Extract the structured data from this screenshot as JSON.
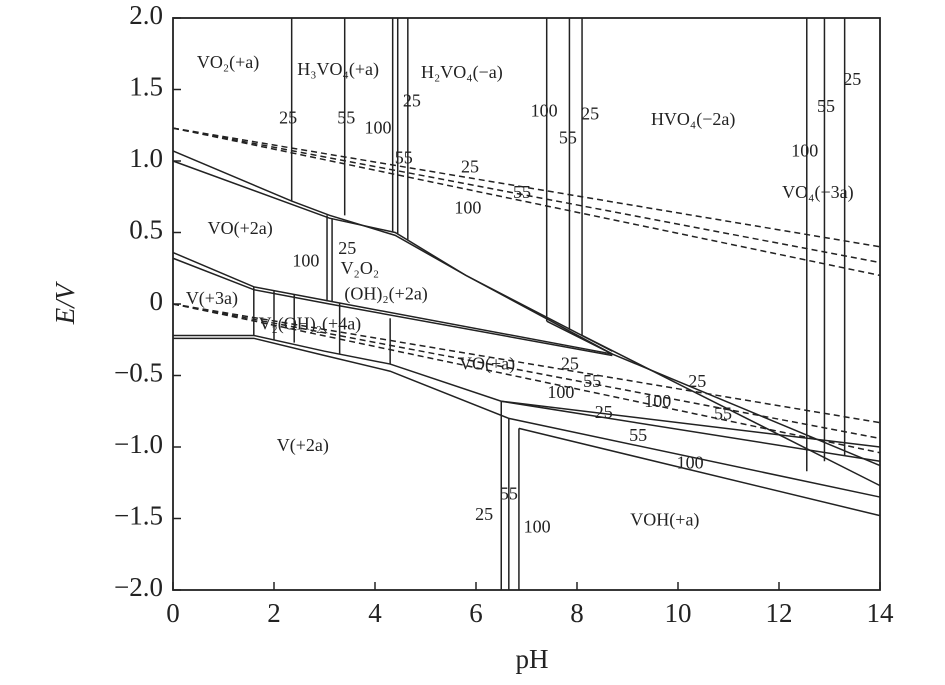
{
  "chart_data": {
    "type": "line",
    "xlabel": "pH",
    "ylabel": "E/V",
    "xlim": [
      0,
      14
    ],
    "ylim": [
      -2,
      2
    ],
    "xticks": [
      0,
      2,
      4,
      6,
      8,
      10,
      12,
      14
    ],
    "yticks": [
      {
        "value": 2,
        "label": "2.0"
      },
      {
        "value": 1.5,
        "label": "1.5"
      },
      {
        "value": 1,
        "label": "1.0"
      },
      {
        "value": 0.5,
        "label": "0.5"
      },
      0,
      {
        "value": -0.5,
        "label": "−0.5"
      },
      {
        "value": -1,
        "label": "−1.0"
      },
      {
        "value": -1.5,
        "label": "−1.5"
      },
      {
        "value": -2,
        "label": "−2.0"
      }
    ],
    "color": "#222222",
    "lines": [
      {
        "style": "dashed",
        "x": [
          0,
          14
        ],
        "y": [
          1.23,
          0.4
        ]
      },
      {
        "style": "dashed",
        "x": [
          0,
          14
        ],
        "y": [
          1.23,
          0.29
        ]
      },
      {
        "style": "dashed",
        "x": [
          0,
          14
        ],
        "y": [
          1.23,
          0.2
        ]
      },
      {
        "style": "dashed",
        "x": [
          0,
          14
        ],
        "y": [
          0,
          -0.83
        ]
      },
      {
        "style": "dashed",
        "x": [
          0,
          14
        ],
        "y": [
          0,
          -0.94
        ]
      },
      {
        "style": "dashed",
        "x": [
          0,
          14
        ],
        "y": [
          0,
          -1.04
        ]
      },
      {
        "style": "solid",
        "x": [
          0,
          2.35,
          3.1,
          4.4,
          5.8,
          8.7
        ],
        "y": [
          1.07,
          0.72,
          0.62,
          0.48,
          0.2,
          -0.35
        ]
      },
      {
        "style": "solid",
        "x": [
          0,
          3.1,
          4.4,
          5.8,
          8.7
        ],
        "y": [
          1.0,
          0.6,
          0.5,
          0.2,
          -0.33
        ]
      },
      {
        "style": "solid",
        "x": [
          0,
          1.6,
          3.1,
          8.7
        ],
        "y": [
          0.36,
          0.12,
          0.02,
          -0.35
        ]
      },
      {
        "style": "solid",
        "x": [
          0,
          1.6,
          3.1,
          8.7
        ],
        "y": [
          0.32,
          0.1,
          0.0,
          -0.36
        ]
      },
      {
        "style": "solid",
        "x": [
          0,
          1.6,
          3.0,
          4.3,
          6.5,
          14
        ],
        "y": [
          -0.22,
          -0.22,
          -0.33,
          -0.42,
          -0.68,
          -1.1
        ]
      },
      {
        "style": "solid",
        "x": [
          0,
          1.6,
          3.0,
          4.3,
          6.65,
          14
        ],
        "y": [
          -0.24,
          -0.24,
          -0.36,
          -0.47,
          -0.8,
          -1.35
        ]
      },
      {
        "style": "solid",
        "x": [
          6.85,
          14
        ],
        "y": [
          -0.87,
          -1.48
        ]
      },
      {
        "style": "solid",
        "x": [
          6.5,
          14
        ],
        "y": [
          -0.68,
          -1.0
        ]
      },
      {
        "style": "solid",
        "x": [
          7.4,
          8.7,
          14
        ],
        "y": [
          -0.12,
          -0.35,
          -1.13
        ]
      },
      {
        "style": "solid",
        "x": [
          8.1,
          14
        ],
        "y": [
          -0.22,
          -1.27
        ]
      },
      {
        "style": "solid",
        "x": [
          2.35,
          2.35
        ],
        "y": [
          0.72,
          2
        ]
      },
      {
        "style": "solid",
        "x": [
          3.4,
          3.4
        ],
        "y": [
          0.62,
          2
        ]
      },
      {
        "style": "solid",
        "x": [
          4.35,
          4.35
        ],
        "y": [
          0.5,
          2
        ]
      },
      {
        "style": "solid",
        "x": [
          4.45,
          4.45
        ],
        "y": [
          0.49,
          2
        ]
      },
      {
        "style": "solid",
        "x": [
          4.65,
          4.65
        ],
        "y": [
          0.45,
          2
        ]
      },
      {
        "style": "solid",
        "x": [
          7.4,
          7.4
        ],
        "y": [
          -0.12,
          2
        ]
      },
      {
        "style": "solid",
        "x": [
          7.85,
          7.85
        ],
        "y": [
          -0.18,
          2
        ]
      },
      {
        "style": "solid",
        "x": [
          8.1,
          8.1
        ],
        "y": [
          -0.22,
          2
        ]
      },
      {
        "style": "solid",
        "x": [
          12.55,
          12.55
        ],
        "y": [
          -1.17,
          2
        ]
      },
      {
        "style": "solid",
        "x": [
          12.9,
          12.9
        ],
        "y": [
          -1.1,
          2
        ]
      },
      {
        "style": "solid",
        "x": [
          13.3,
          13.3
        ],
        "y": [
          -1.06,
          2
        ]
      },
      {
        "style": "solid",
        "x": [
          3.05,
          3.05
        ],
        "y": [
          0.02,
          0.62
        ]
      },
      {
        "style": "solid",
        "x": [
          3.15,
          3.15
        ],
        "y": [
          0.02,
          0.6
        ]
      },
      {
        "style": "solid",
        "x": [
          1.6,
          1.6
        ],
        "y": [
          -0.22,
          0.12
        ]
      },
      {
        "style": "solid",
        "x": [
          2.0,
          2.0
        ],
        "y": [
          -0.25,
          0.09
        ]
      },
      {
        "style": "solid",
        "x": [
          2.4,
          2.4
        ],
        "y": [
          -0.27,
          0.07
        ]
      },
      {
        "style": "solid",
        "x": [
          3.3,
          3.3
        ],
        "y": [
          -0.35,
          0.01
        ]
      },
      {
        "style": "solid",
        "x": [
          4.3,
          4.3
        ],
        "y": [
          -0.42,
          -0.1
        ]
      },
      {
        "style": "solid",
        "x": [
          6.5,
          6.5
        ],
        "y": [
          -2,
          -0.68
        ]
      },
      {
        "style": "solid",
        "x": [
          6.65,
          6.65
        ],
        "y": [
          -2,
          -0.8
        ]
      },
      {
        "style": "solid",
        "x": [
          6.85,
          6.85
        ],
        "y": [
          -2,
          -0.87
        ]
      }
    ],
    "annotations": [
      {
        "text": "VO₂(+a)",
        "x": 1.09,
        "y": 1.68
      },
      {
        "text": "H₃VO₄(+a)",
        "x": 3.27,
        "y": 1.63
      },
      {
        "text": "H₂VO₄(−a)",
        "x": 5.72,
        "y": 1.61
      },
      {
        "text": "HVO₄(−2a)",
        "x": 10.3,
        "y": 1.28
      },
      {
        "text": "VO₄(−3a)",
        "x": 12.77,
        "y": 0.77
      },
      {
        "text": "VO(+2a)",
        "x": 1.33,
        "y": 0.52
      },
      {
        "text": "V₂O₂",
        "x": 3.7,
        "y": 0.24
      },
      {
        "text": "(OH)₂(+2a)",
        "x": 4.22,
        "y": 0.06
      },
      {
        "text": "V(+3a)",
        "x": 0.77,
        "y": 0.03
      },
      {
        "text": "V₂(OH)₂(+4a)",
        "x": 2.71,
        "y": -0.15
      },
      {
        "text": "VO(+a)",
        "x": 6.22,
        "y": -0.43
      },
      {
        "text": "V(+2a)",
        "x": 2.57,
        "y": -1.0
      },
      {
        "text": "VOH(+a)",
        "x": 9.74,
        "y": -1.52
      },
      {
        "text": "25",
        "x": 2.28,
        "y": 1.29
      },
      {
        "text": "55",
        "x": 3.43,
        "y": 1.29
      },
      {
        "text": "100",
        "x": 4.06,
        "y": 1.22
      },
      {
        "text": "25",
        "x": 4.73,
        "y": 1.41
      },
      {
        "text": "55",
        "x": 4.57,
        "y": 1.01
      },
      {
        "text": "25",
        "x": 5.88,
        "y": 0.95
      },
      {
        "text": "55",
        "x": 6.91,
        "y": 0.77
      },
      {
        "text": "100",
        "x": 5.84,
        "y": 0.66
      },
      {
        "text": "100",
        "x": 7.35,
        "y": 1.34
      },
      {
        "text": "55",
        "x": 7.82,
        "y": 1.15
      },
      {
        "text": "25",
        "x": 8.26,
        "y": 1.32
      },
      {
        "text": "100",
        "x": 12.51,
        "y": 1.06
      },
      {
        "text": "55",
        "x": 12.93,
        "y": 1.37
      },
      {
        "text": "25",
        "x": 13.45,
        "y": 1.56
      },
      {
        "text": "25",
        "x": 3.45,
        "y": 0.38
      },
      {
        "text": "100",
        "x": 2.63,
        "y": 0.29
      },
      {
        "text": "25",
        "x": 7.86,
        "y": -0.43
      },
      {
        "text": "55",
        "x": 8.3,
        "y": -0.55
      },
      {
        "text": "100",
        "x": 7.68,
        "y": -0.63
      },
      {
        "text": "25",
        "x": 8.53,
        "y": -0.77
      },
      {
        "text": "100",
        "x": 9.6,
        "y": -0.69
      },
      {
        "text": "55",
        "x": 9.21,
        "y": -0.93
      },
      {
        "text": "25",
        "x": 10.38,
        "y": -0.55
      },
      {
        "text": "55",
        "x": 10.89,
        "y": -0.78
      },
      {
        "text": "100",
        "x": 10.24,
        "y": -1.12
      },
      {
        "text": "25",
        "x": 6.16,
        "y": -1.48
      },
      {
        "text": "55",
        "x": 6.65,
        "y": -1.34
      },
      {
        "text": "100",
        "x": 7.21,
        "y": -1.57
      }
    ]
  }
}
